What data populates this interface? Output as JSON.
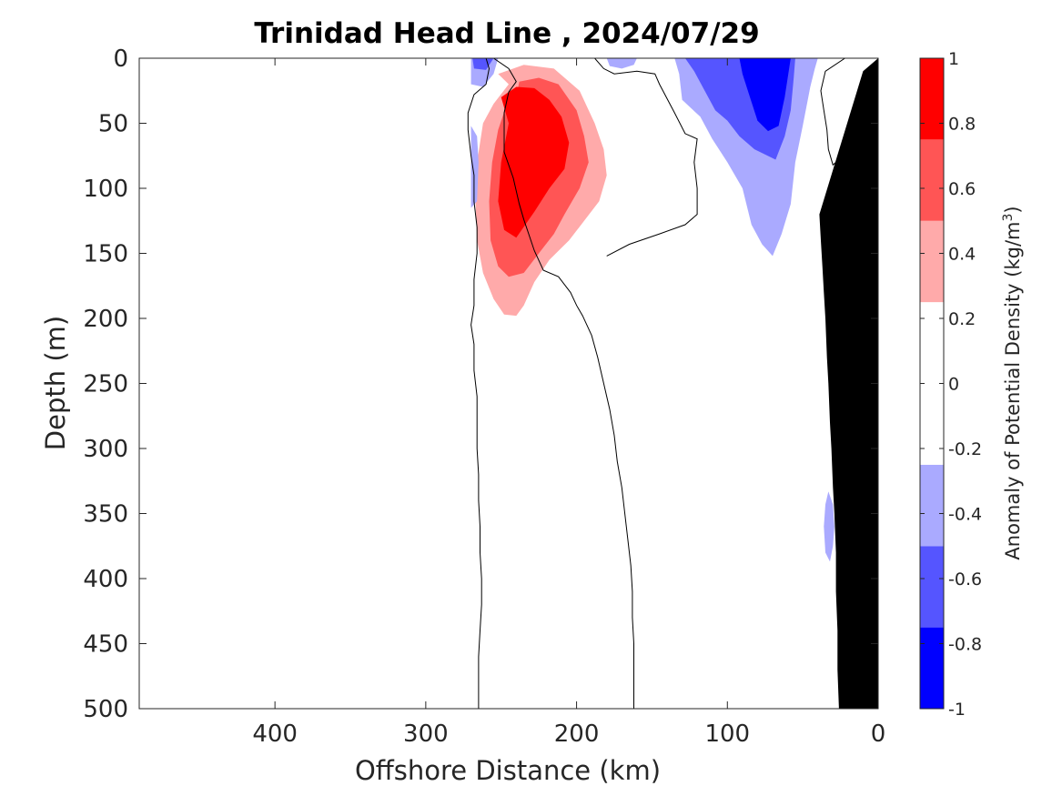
{
  "chart_data": {
    "type": "heatmap",
    "title": "Trinidad Head Line , 2024/07/29",
    "xlabel": "Offshore Distance (km)",
    "ylabel": "Depth (m)",
    "colorbar_label": "Anomaly of Potential Density (kg/m",
    "colorbar_label_sup": "3",
    "colorbar_label_close": ")",
    "xlim": [
      490,
      0
    ],
    "ylim": [
      0,
      500
    ],
    "x_reversed": true,
    "y_reversed": true,
    "x_ticks": [
      400,
      300,
      200,
      100,
      0
    ],
    "y_ticks": [
      0,
      50,
      100,
      150,
      200,
      250,
      300,
      350,
      400,
      450,
      500
    ],
    "colorbar": {
      "range": [
        -1,
        1
      ],
      "ticks": [
        -1,
        -0.8,
        -0.6,
        -0.4,
        -0.2,
        0,
        0.2,
        0.4,
        0.6,
        0.8,
        1
      ],
      "levels": [
        {
          "from": -1.0,
          "to": -0.75,
          "color": "#0000ff"
        },
        {
          "from": -0.75,
          "to": -0.5,
          "color": "#5555ff"
        },
        {
          "from": -0.5,
          "to": -0.25,
          "color": "#aaaaff"
        },
        {
          "from": -0.25,
          "to": 0.25,
          "color": "#ffffff"
        },
        {
          "from": 0.25,
          "to": 0.5,
          "color": "#ffaaaa"
        },
        {
          "from": 0.5,
          "to": 0.75,
          "color": "#ff5555"
        },
        {
          "from": 0.75,
          "to": 1.0,
          "color": "#ff0000"
        }
      ]
    },
    "regions": [
      {
        "name": "positive-anomaly-light",
        "color": "#ffaaaa",
        "points": [
          [
            245,
            20
          ],
          [
            252,
            12
          ],
          [
            235,
            5
          ],
          [
            215,
            8
          ],
          [
            198,
            25
          ],
          [
            188,
            50
          ],
          [
            182,
            70
          ],
          [
            180,
            90
          ],
          [
            185,
            110
          ],
          [
            195,
            125
          ],
          [
            205,
            140
          ],
          [
            218,
            155
          ],
          [
            228,
            172
          ],
          [
            235,
            190
          ],
          [
            240,
            198
          ],
          [
            248,
            197
          ],
          [
            255,
            185
          ],
          [
            262,
            165
          ],
          [
            266,
            140
          ],
          [
            267,
            110
          ],
          [
            266,
            80
          ],
          [
            262,
            50
          ],
          [
            255,
            35
          ]
        ]
      },
      {
        "name": "positive-anomaly-medium",
        "color": "#ff5555",
        "points": [
          [
            240,
            30
          ],
          [
            238,
            18
          ],
          [
            225,
            15
          ],
          [
            212,
            20
          ],
          [
            200,
            40
          ],
          [
            195,
            60
          ],
          [
            192,
            80
          ],
          [
            198,
            100
          ],
          [
            208,
            120
          ],
          [
            215,
            135
          ],
          [
            225,
            150
          ],
          [
            235,
            165
          ],
          [
            245,
            168
          ],
          [
            252,
            160
          ],
          [
            257,
            140
          ],
          [
            258,
            110
          ],
          [
            256,
            80
          ],
          [
            252,
            55
          ],
          [
            247,
            38
          ]
        ]
      },
      {
        "name": "positive-anomaly-strong",
        "color": "#ff0000",
        "points": [
          [
            245,
            50
          ],
          [
            250,
            30
          ],
          [
            240,
            22
          ],
          [
            228,
            23
          ],
          [
            218,
            32
          ],
          [
            210,
            45
          ],
          [
            205,
            65
          ],
          [
            208,
            85
          ],
          [
            218,
            100
          ],
          [
            228,
            118
          ],
          [
            240,
            138
          ],
          [
            248,
            132
          ],
          [
            252,
            110
          ],
          [
            250,
            80
          ],
          [
            247,
            62
          ]
        ]
      },
      {
        "name": "negative-anomaly-upper-left-light",
        "color": "#aaaaff",
        "points": [
          [
            270,
            0
          ],
          [
            270,
            20
          ],
          [
            262,
            22
          ],
          [
            255,
            12
          ],
          [
            252,
            0
          ]
        ]
      },
      {
        "name": "negative-anomaly-upper-left-medium",
        "color": "#5555ff",
        "points": [
          [
            269,
            0
          ],
          [
            268,
            8
          ],
          [
            260,
            9
          ],
          [
            255,
            0
          ]
        ]
      },
      {
        "name": "negative-anomaly-flank-light",
        "color": "#aaaaff",
        "points": [
          [
            270,
            52
          ],
          [
            270,
            115
          ],
          [
            266,
            110
          ],
          [
            265,
            80
          ],
          [
            266,
            60
          ]
        ]
      },
      {
        "name": "negative-anomaly-top-center-light",
        "color": "#aaaaff",
        "points": [
          [
            180,
            0
          ],
          [
            178,
            6
          ],
          [
            170,
            8
          ],
          [
            162,
            5
          ],
          [
            160,
            0
          ]
        ]
      },
      {
        "name": "negative-anomaly-nearshore-light",
        "color": "#aaaaff",
        "points": [
          [
            135,
            0
          ],
          [
            132,
            12
          ],
          [
            130,
            32
          ],
          [
            118,
            45
          ],
          [
            110,
            62
          ],
          [
            100,
            80
          ],
          [
            90,
            100
          ],
          [
            84,
            128
          ],
          [
            77,
            143
          ],
          [
            70,
            152
          ],
          [
            64,
            135
          ],
          [
            58,
            112
          ],
          [
            55,
            80
          ],
          [
            50,
            52
          ],
          [
            45,
            22
          ],
          [
            42,
            8
          ],
          [
            40,
            0
          ]
        ]
      },
      {
        "name": "negative-anomaly-nearshore-medium",
        "color": "#5555ff",
        "points": [
          [
            128,
            0
          ],
          [
            122,
            10
          ],
          [
            115,
            25
          ],
          [
            108,
            40
          ],
          [
            100,
            48
          ],
          [
            92,
            60
          ],
          [
            82,
            70
          ],
          [
            68,
            78
          ],
          [
            62,
            60
          ],
          [
            58,
            40
          ],
          [
            56,
            15
          ],
          [
            55,
            0
          ]
        ]
      },
      {
        "name": "negative-anomaly-nearshore-strong",
        "color": "#0000ff",
        "points": [
          [
            92,
            0
          ],
          [
            90,
            12
          ],
          [
            85,
            30
          ],
          [
            80,
            48
          ],
          [
            73,
            56
          ],
          [
            66,
            52
          ],
          [
            62,
            30
          ],
          [
            58,
            0
          ]
        ]
      },
      {
        "name": "negative-anomaly-deep-light",
        "color": "#aaaaff",
        "points": [
          [
            33,
            333
          ],
          [
            30,
            343
          ],
          [
            29,
            360
          ],
          [
            30,
            375
          ],
          [
            32,
            387
          ],
          [
            35,
            380
          ],
          [
            36,
            360
          ],
          [
            35,
            343
          ]
        ]
      }
    ],
    "contours": [
      {
        "name": "zero-contour-offshore",
        "points": [
          [
            260,
            0
          ],
          [
            258,
            8
          ],
          [
            260,
            20
          ],
          [
            268,
            28
          ],
          [
            272,
            42
          ],
          [
            272,
            55
          ],
          [
            270,
            75
          ],
          [
            268,
            90
          ],
          [
            268,
            110
          ],
          [
            266,
            130
          ],
          [
            266,
            150
          ],
          [
            268,
            170
          ],
          [
            268,
            190
          ],
          [
            270,
            205
          ],
          [
            268,
            220
          ],
          [
            268,
            240
          ],
          [
            266,
            260
          ],
          [
            266,
            280
          ],
          [
            266,
            300
          ],
          [
            265,
            320
          ],
          [
            265,
            340
          ],
          [
            264,
            360
          ],
          [
            264,
            380
          ],
          [
            263,
            400
          ],
          [
            263,
            420
          ],
          [
            264,
            440
          ],
          [
            265,
            460
          ],
          [
            265,
            480
          ],
          [
            265,
            500
          ]
        ]
      },
      {
        "name": "zero-contour-inner",
        "points": [
          [
            255,
            0
          ],
          [
            245,
            8
          ],
          [
            240,
            18
          ],
          [
            245,
            26
          ],
          [
            248,
            42
          ],
          [
            248,
            72
          ],
          [
            242,
            92
          ],
          [
            238,
            112
          ],
          [
            235,
            124
          ],
          [
            228,
            148
          ],
          [
            222,
            163
          ],
          [
            212,
            168
          ],
          [
            208,
            174
          ],
          [
            204,
            180
          ],
          [
            200,
            190
          ],
          [
            196,
            198
          ],
          [
            190,
            213
          ],
          [
            186,
            230
          ],
          [
            182,
            250
          ],
          [
            178,
            270
          ],
          [
            175,
            290
          ],
          [
            173,
            310
          ],
          [
            170,
            330
          ],
          [
            168,
            350
          ],
          [
            166,
            370
          ],
          [
            164,
            390
          ],
          [
            163,
            410
          ],
          [
            163,
            430
          ],
          [
            162,
            450
          ],
          [
            162,
            470
          ],
          [
            162,
            485
          ],
          [
            162,
            500
          ]
        ]
      },
      {
        "name": "zero-contour-upper-bulge",
        "points": [
          [
            188,
            0
          ],
          [
            182,
            8
          ],
          [
            175,
            12
          ],
          [
            160,
            10
          ],
          [
            148,
            12
          ],
          [
            145,
            20
          ],
          [
            135,
            42
          ],
          [
            128,
            58
          ],
          [
            120,
            62
          ],
          [
            122,
            80
          ],
          [
            120,
            100
          ],
          [
            120,
            120
          ],
          [
            128,
            128
          ],
          [
            145,
            135
          ],
          [
            165,
            143
          ],
          [
            180,
            152
          ]
        ]
      },
      {
        "name": "zero-contour-nearshore",
        "points": [
          [
            22,
            0
          ],
          [
            35,
            10
          ],
          [
            38,
            25
          ],
          [
            36,
            40
          ],
          [
            34,
            55
          ],
          [
            33,
            70
          ],
          [
            30,
            82
          ],
          [
            26,
            78
          ],
          [
            20,
            72
          ]
        ]
      }
    ],
    "bathymetry": {
      "color": "#000000",
      "points": [
        [
          0,
          0
        ],
        [
          0,
          500
        ],
        [
          26,
          500
        ],
        [
          27,
          470
        ],
        [
          27,
          440
        ],
        [
          28,
          410
        ],
        [
          28,
          380
        ],
        [
          29,
          350
        ],
        [
          30,
          330
        ],
        [
          31,
          300
        ],
        [
          32,
          280
        ],
        [
          33,
          250
        ],
        [
          34,
          230
        ],
        [
          35,
          200
        ],
        [
          36,
          180
        ],
        [
          37,
          160
        ],
        [
          38,
          140
        ],
        [
          39,
          120
        ],
        [
          10,
          10
        ]
      ]
    }
  }
}
